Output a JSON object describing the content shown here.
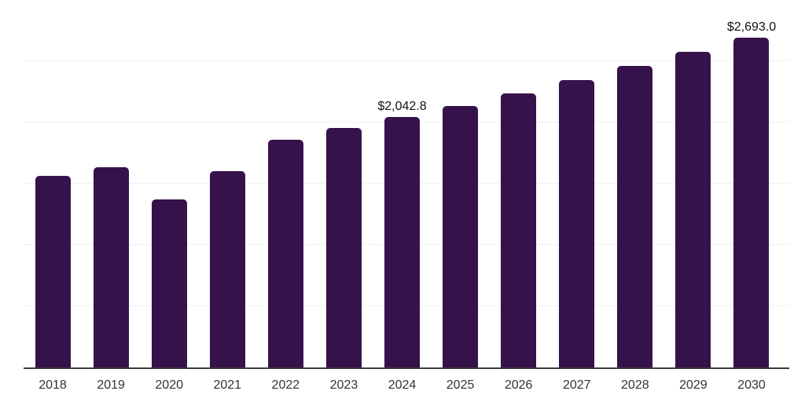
{
  "chart_data": {
    "type": "bar",
    "title": "",
    "xlabel": "",
    "ylabel": "",
    "categories": [
      "2018",
      "2019",
      "2020",
      "2021",
      "2022",
      "2023",
      "2024",
      "2025",
      "2026",
      "2027",
      "2028",
      "2029",
      "2030"
    ],
    "values": [
      1564,
      1635,
      1372,
      1603,
      1859,
      1955,
      2042.8,
      2135,
      2237,
      2346,
      2462,
      2577,
      2693.0
    ],
    "annotations": [
      {
        "category": "2024",
        "label": "$2,042.8"
      },
      {
        "category": "2030",
        "label": "$2,693.0"
      }
    ],
    "ylim": [
      0,
      3000
    ],
    "gridline_step": 500,
    "grid": "horizontal",
    "legend": "none",
    "colors": {
      "bar": "#36124b",
      "gridline": "#f0f0f1",
      "axis_line": "#3b3b3b",
      "tick_label": "#333333",
      "annotation_text": "#111111",
      "background": "#ffffff"
    }
  }
}
